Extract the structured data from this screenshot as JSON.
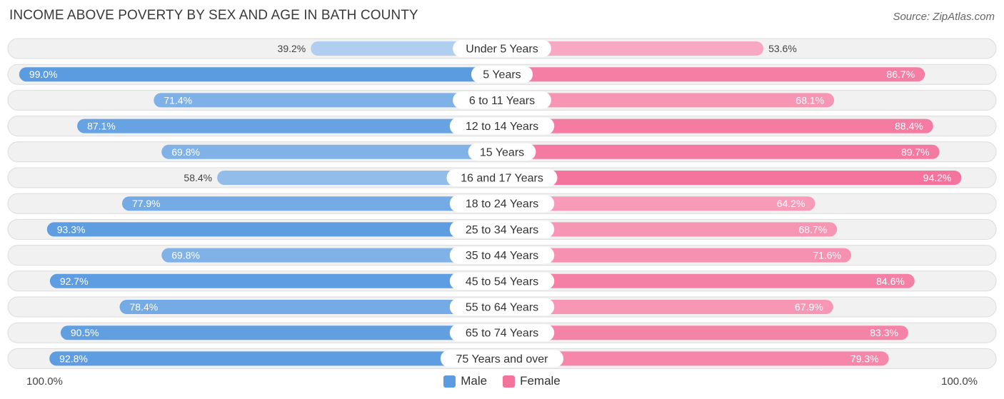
{
  "chart_data": {
    "type": "bar",
    "orientation": "horizontal-diverging",
    "title": "INCOME ABOVE POVERTY BY SEX AND AGE IN BATH COUNTY",
    "source": "Source: ZipAtlas.com",
    "categories": [
      "Under 5 Years",
      "5 Years",
      "6 to 11 Years",
      "12 to 14 Years",
      "15 Years",
      "16 and 17 Years",
      "18 to 24 Years",
      "25 to 34 Years",
      "35 to 44 Years",
      "45 to 54 Years",
      "55 to 64 Years",
      "65 to 74 Years",
      "75 Years and over"
    ],
    "series": [
      {
        "name": "Male",
        "color": "#5b9be0",
        "values": [
          39.2,
          99.0,
          71.4,
          87.1,
          69.8,
          58.4,
          77.9,
          93.3,
          69.8,
          92.7,
          78.4,
          90.5,
          92.8
        ],
        "labels": [
          "39.2%",
          "99.0%",
          "71.4%",
          "87.1%",
          "69.8%",
          "58.4%",
          "77.9%",
          "93.3%",
          "69.8%",
          "92.7%",
          "78.4%",
          "90.5%",
          "92.8%"
        ]
      },
      {
        "name": "Female",
        "color": "#f4739c",
        "values": [
          53.6,
          86.7,
          68.1,
          88.4,
          89.7,
          94.2,
          64.2,
          68.7,
          71.6,
          84.6,
          67.9,
          83.3,
          79.3
        ],
        "labels": [
          "53.6%",
          "86.7%",
          "68.1%",
          "88.4%",
          "89.7%",
          "94.2%",
          "64.2%",
          "68.7%",
          "71.6%",
          "84.6%",
          "67.9%",
          "83.3%",
          "79.3%"
        ]
      }
    ],
    "axis_left_label": "100.0%",
    "axis_right_label": "100.0%",
    "xlim": [
      0,
      100
    ],
    "legend_position": "bottom-center"
  }
}
